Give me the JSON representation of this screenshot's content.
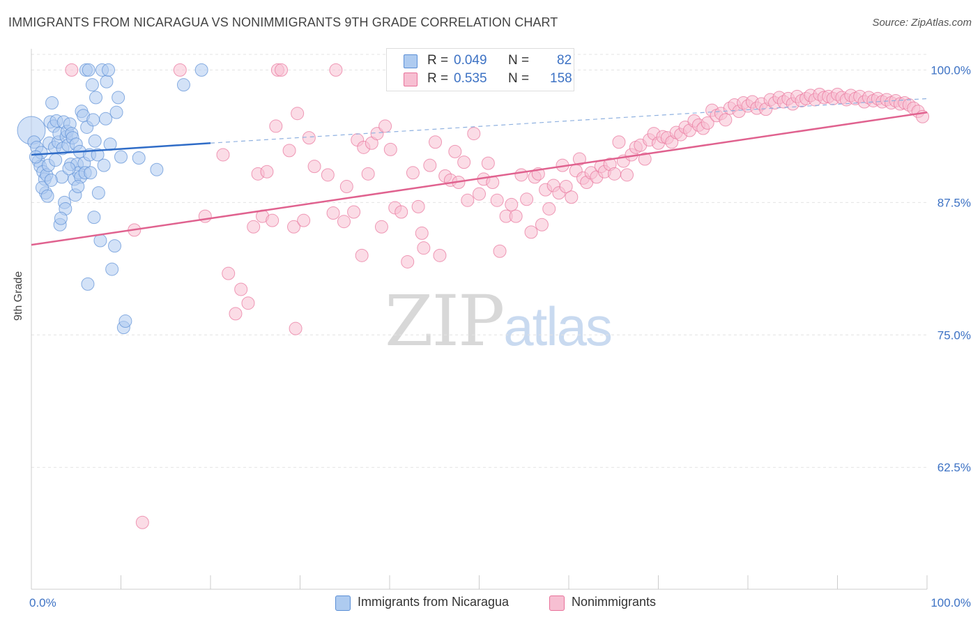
{
  "title": "IMMIGRANTS FROM NICARAGUA VS NONIMMIGRANTS 9TH GRADE CORRELATION CHART",
  "source_label": "Source: ZipAtlas.com",
  "watermark": {
    "zip": "ZIP",
    "atlas": "atlas"
  },
  "legend": {
    "rows": [
      {
        "r_label": "R =",
        "r_value": "0.049",
        "n_label": "N =",
        "n_value": "82"
      },
      {
        "r_label": "R =",
        "r_value": "0.535",
        "n_label": "N =",
        "n_value": "158"
      }
    ]
  },
  "chart_data": {
    "type": "scatter",
    "title": "IMMIGRANTS FROM NICARAGUA VS NONIMMIGRANTS 9TH GRADE CORRELATION CHART",
    "xlabel": "",
    "ylabel": "9th Grade",
    "xlim": [
      0,
      100
    ],
    "ylim": [
      51,
      102
    ],
    "x_tick_labels": [
      "0.0%",
      "100.0%"
    ],
    "y_ticks": [
      100.0,
      87.5,
      75.0,
      62.5
    ],
    "y_tick_labels": [
      "100.0%",
      "87.5%",
      "75.0%",
      "62.5%"
    ],
    "grid": true,
    "colors": {
      "blue": "#5b8fd6",
      "blue_fill": "#aecbf0",
      "pink": "#e8729a",
      "pink_fill": "#f7bfd2",
      "tick_label": "#3d72c4"
    },
    "series": [
      {
        "name": "Immigrants from Nicaragua",
        "color": "#5b8fd6",
        "trend": {
          "x0": 0,
          "y0": 92.0,
          "x1": 20,
          "y1": 93.1,
          "dashed_to_x": 100,
          "dashed_to_y": 97.3
        },
        "points": [
          [
            0,
            94.3
          ],
          [
            0.3,
            93.2
          ],
          [
            0.6,
            92.7
          ],
          [
            0.8,
            91.4
          ],
          [
            1.0,
            90.9
          ],
          [
            1.1,
            92.2
          ],
          [
            1.3,
            90.4
          ],
          [
            1.5,
            89.7
          ],
          [
            1.6,
            88.4
          ],
          [
            1.7,
            90.1
          ],
          [
            1.9,
            91.0
          ],
          [
            2.0,
            93.1
          ],
          [
            2.1,
            95.1
          ],
          [
            2.3,
            96.9
          ],
          [
            2.5,
            94.7
          ],
          [
            2.6,
            92.7
          ],
          [
            2.8,
            95.2
          ],
          [
            3.0,
            93.2
          ],
          [
            3.1,
            94.0
          ],
          [
            3.2,
            85.4
          ],
          [
            3.4,
            89.9
          ],
          [
            3.5,
            92.6
          ],
          [
            3.6,
            95.1
          ],
          [
            3.7,
            87.5
          ],
          [
            3.8,
            86.9
          ],
          [
            3.9,
            93.7
          ],
          [
            4.0,
            94.2
          ],
          [
            4.1,
            92.9
          ],
          [
            4.3,
            94.9
          ],
          [
            4.4,
            91.1
          ],
          [
            4.5,
            94.0
          ],
          [
            4.6,
            93.6
          ],
          [
            4.8,
            89.7
          ],
          [
            4.9,
            88.2
          ],
          [
            5.0,
            93.0
          ],
          [
            5.1,
            91.1
          ],
          [
            5.3,
            90.3
          ],
          [
            5.4,
            92.3
          ],
          [
            5.5,
            89.9
          ],
          [
            5.6,
            96.1
          ],
          [
            5.8,
            95.7
          ],
          [
            5.9,
            91.2
          ],
          [
            6.0,
            90.3
          ],
          [
            6.1,
            100.0
          ],
          [
            6.2,
            94.6
          ],
          [
            6.4,
            100.0
          ],
          [
            6.5,
            92.0
          ],
          [
            6.6,
            90.3
          ],
          [
            6.8,
            98.6
          ],
          [
            6.9,
            95.3
          ],
          [
            7.1,
            93.3
          ],
          [
            7.2,
            97.4
          ],
          [
            7.4,
            92.0
          ],
          [
            7.5,
            88.4
          ],
          [
            7.7,
            83.9
          ],
          [
            7.9,
            100.0
          ],
          [
            8.1,
            91.0
          ],
          [
            8.3,
            95.4
          ],
          [
            8.4,
            98.9
          ],
          [
            8.6,
            100.0
          ],
          [
            8.8,
            93.0
          ],
          [
            9.0,
            81.2
          ],
          [
            9.3,
            83.4
          ],
          [
            9.5,
            96.0
          ],
          [
            9.7,
            97.4
          ],
          [
            10.0,
            91.8
          ],
          [
            10.3,
            75.7
          ],
          [
            10.5,
            76.3
          ],
          [
            12.0,
            91.7
          ],
          [
            14.0,
            90.6
          ],
          [
            17.0,
            98.6
          ],
          [
            19.0,
            100.0
          ],
          [
            1.2,
            88.9
          ],
          [
            2.2,
            89.6
          ],
          [
            2.7,
            91.5
          ],
          [
            3.3,
            86.0
          ],
          [
            4.2,
            90.7
          ],
          [
            5.2,
            89.0
          ],
          [
            6.3,
            79.8
          ],
          [
            7.0,
            86.1
          ],
          [
            0.5,
            91.8
          ],
          [
            1.8,
            88.1
          ]
        ]
      },
      {
        "name": "Nonimmigrants",
        "color": "#e8729a",
        "trend": {
          "x0": 0,
          "y0": 83.5,
          "x1": 100,
          "y1": 96.0
        },
        "points": [
          [
            4.5,
            100.0
          ],
          [
            16.6,
            100.0
          ],
          [
            27.5,
            100.0
          ],
          [
            27.9,
            100.0
          ],
          [
            34.0,
            100.0
          ],
          [
            12.4,
            57.3
          ],
          [
            22.0,
            80.8
          ],
          [
            22.8,
            77.0
          ],
          [
            23.4,
            79.3
          ],
          [
            24.2,
            78.0
          ],
          [
            11.5,
            84.9
          ],
          [
            19.4,
            86.2
          ],
          [
            21.4,
            92.0
          ],
          [
            24.8,
            85.2
          ],
          [
            25.3,
            90.2
          ],
          [
            25.8,
            86.2
          ],
          [
            26.3,
            90.4
          ],
          [
            26.9,
            85.8
          ],
          [
            27.3,
            94.7
          ],
          [
            28.8,
            92.4
          ],
          [
            29.3,
            85.2
          ],
          [
            29.7,
            95.9
          ],
          [
            30.4,
            85.8
          ],
          [
            31.0,
            93.6
          ],
          [
            31.6,
            90.9
          ],
          [
            33.1,
            90.1
          ],
          [
            33.7,
            86.5
          ],
          [
            34.9,
            85.7
          ],
          [
            36.0,
            86.6
          ],
          [
            36.4,
            93.4
          ],
          [
            37.1,
            92.7
          ],
          [
            37.6,
            90.2
          ],
          [
            38.0,
            93.1
          ],
          [
            38.6,
            94.0
          ],
          [
            39.1,
            85.2
          ],
          [
            39.5,
            94.7
          ],
          [
            40.1,
            92.5
          ],
          [
            40.6,
            87.0
          ],
          [
            41.3,
            86.6
          ],
          [
            42.0,
            81.9
          ],
          [
            42.6,
            90.3
          ],
          [
            43.2,
            87.1
          ],
          [
            43.8,
            83.2
          ],
          [
            44.5,
            91.0
          ],
          [
            45.1,
            93.2
          ],
          [
            45.6,
            82.5
          ],
          [
            46.2,
            90.0
          ],
          [
            46.8,
            89.6
          ],
          [
            47.3,
            92.3
          ],
          [
            47.7,
            89.4
          ],
          [
            48.3,
            91.3
          ],
          [
            48.7,
            87.7
          ],
          [
            49.4,
            94.0
          ],
          [
            50.0,
            88.3
          ],
          [
            50.5,
            89.7
          ],
          [
            51.0,
            91.2
          ],
          [
            51.5,
            89.4
          ],
          [
            52.0,
            87.7
          ],
          [
            52.3,
            82.9
          ],
          [
            53.0,
            86.2
          ],
          [
            53.6,
            87.3
          ],
          [
            54.1,
            86.2
          ],
          [
            54.7,
            90.1
          ],
          [
            55.3,
            87.8
          ],
          [
            55.8,
            84.7
          ],
          [
            56.2,
            89.9
          ],
          [
            56.6,
            90.2
          ],
          [
            57.0,
            85.4
          ],
          [
            57.4,
            88.7
          ],
          [
            57.8,
            86.9
          ],
          [
            58.3,
            89.1
          ],
          [
            58.9,
            88.4
          ],
          [
            59.3,
            91.0
          ],
          [
            59.7,
            89.0
          ],
          [
            60.3,
            88.0
          ],
          [
            60.8,
            90.5
          ],
          [
            61.2,
            91.6
          ],
          [
            61.6,
            89.8
          ],
          [
            62.0,
            89.4
          ],
          [
            62.5,
            90.3
          ],
          [
            63.1,
            89.9
          ],
          [
            63.6,
            90.9
          ],
          [
            64.0,
            90.4
          ],
          [
            64.6,
            91.1
          ],
          [
            65.1,
            90.2
          ],
          [
            65.6,
            93.2
          ],
          [
            66.1,
            91.4
          ],
          [
            66.5,
            90.1
          ],
          [
            67.0,
            92.0
          ],
          [
            67.5,
            92.7
          ],
          [
            68.0,
            92.9
          ],
          [
            68.5,
            91.6
          ],
          [
            69.0,
            93.4
          ],
          [
            69.5,
            94.0
          ],
          [
            70.0,
            93.1
          ],
          [
            70.5,
            93.7
          ],
          [
            71.0,
            93.6
          ],
          [
            71.5,
            93.2
          ],
          [
            72.0,
            94.1
          ],
          [
            72.5,
            93.9
          ],
          [
            73.0,
            94.6
          ],
          [
            73.5,
            94.3
          ],
          [
            74.0,
            95.2
          ],
          [
            74.5,
            94.8
          ],
          [
            75.0,
            94.5
          ],
          [
            75.5,
            95.0
          ],
          [
            76.0,
            96.2
          ],
          [
            76.5,
            95.7
          ],
          [
            77.0,
            95.9
          ],
          [
            77.5,
            95.3
          ],
          [
            78.0,
            96.4
          ],
          [
            78.5,
            96.7
          ],
          [
            79.0,
            96.1
          ],
          [
            79.5,
            96.9
          ],
          [
            80.0,
            96.6
          ],
          [
            80.5,
            97.0
          ],
          [
            81.0,
            96.4
          ],
          [
            81.5,
            96.8
          ],
          [
            82.0,
            96.3
          ],
          [
            82.5,
            97.2
          ],
          [
            83.0,
            96.9
          ],
          [
            83.5,
            97.4
          ],
          [
            84.0,
            97.0
          ],
          [
            84.5,
            97.3
          ],
          [
            85.0,
            96.8
          ],
          [
            85.5,
            97.5
          ],
          [
            86.0,
            97.1
          ],
          [
            86.5,
            97.3
          ],
          [
            87.0,
            97.6
          ],
          [
            87.5,
            97.2
          ],
          [
            88.0,
            97.7
          ],
          [
            88.5,
            97.4
          ],
          [
            89.0,
            97.5
          ],
          [
            89.5,
            97.3
          ],
          [
            90.0,
            97.7
          ],
          [
            90.5,
            97.4
          ],
          [
            91.0,
            97.2
          ],
          [
            91.5,
            97.6
          ],
          [
            92.0,
            97.3
          ],
          [
            92.5,
            97.5
          ],
          [
            93.0,
            97.0
          ],
          [
            93.5,
            97.4
          ],
          [
            94.0,
            97.1
          ],
          [
            94.5,
            97.3
          ],
          [
            95.0,
            97.0
          ],
          [
            95.5,
            97.2
          ],
          [
            96.0,
            96.9
          ],
          [
            96.5,
            97.1
          ],
          [
            97.0,
            96.8
          ],
          [
            97.5,
            96.9
          ],
          [
            98.0,
            96.7
          ],
          [
            98.5,
            96.4
          ],
          [
            99.0,
            96.1
          ],
          [
            99.5,
            95.6
          ],
          [
            29.5,
            75.6
          ],
          [
            35.2,
            89.0
          ],
          [
            36.9,
            82.5
          ],
          [
            43.6,
            84.6
          ]
        ]
      }
    ]
  },
  "bottom_legend": {
    "items": [
      {
        "label": "Immigrants from Nicaragua"
      },
      {
        "label": "Nonimmigrants"
      }
    ]
  }
}
